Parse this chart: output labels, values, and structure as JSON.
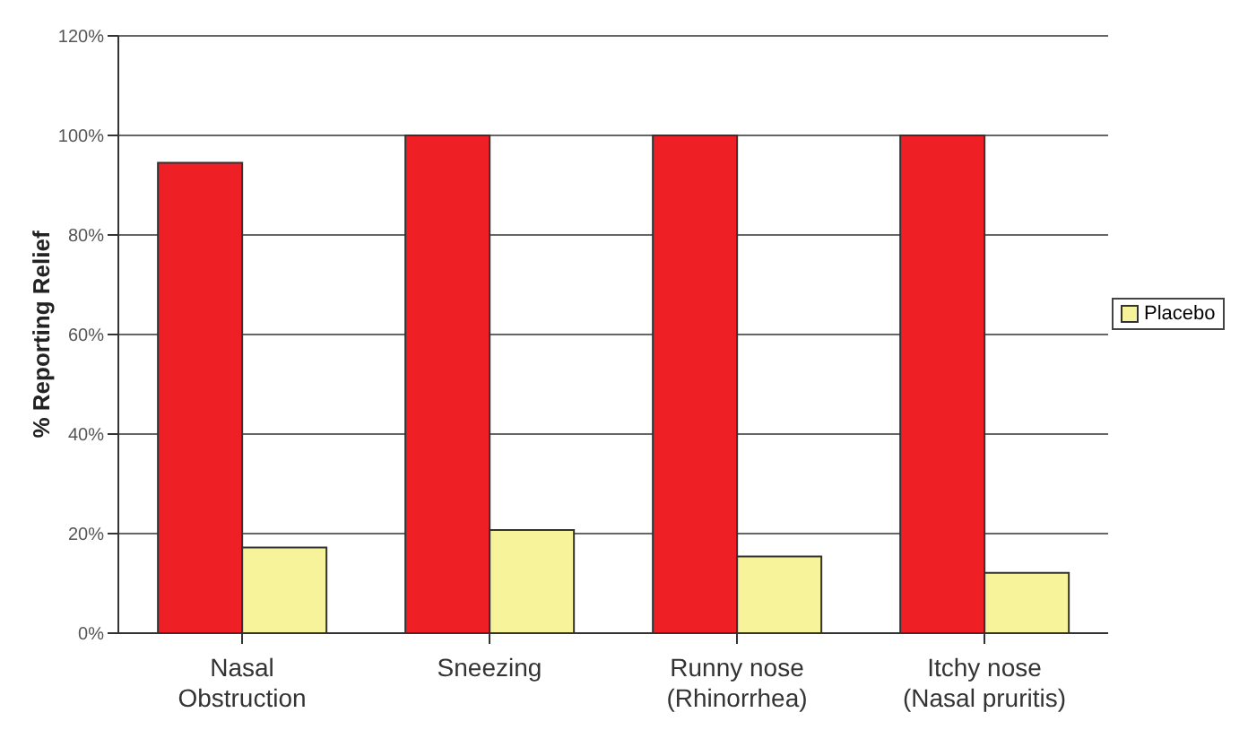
{
  "chart_data": {
    "type": "bar",
    "ylabel": "% Reporting Relief",
    "categories": [
      "Nasal\nObstruction",
      "Sneezing",
      "Runny nose\n(Rhinorrhea)",
      "Itchy nose\n(Nasal pruritis)"
    ],
    "series": [
      {
        "color": "#ee1f25",
        "values": [
          94.5,
          100,
          100,
          100
        ]
      },
      {
        "name": "Placebo",
        "color": "#f7f39b",
        "values": [
          17.2,
          20.7,
          15.4,
          12.1
        ]
      }
    ],
    "ylim": [
      0,
      120
    ],
    "yticks": [
      {
        "value": 0,
        "label": "0%"
      },
      {
        "value": 20,
        "label": "20%"
      },
      {
        "value": 40,
        "label": "40%"
      },
      {
        "value": 60,
        "label": "60%"
      },
      {
        "value": 80,
        "label": "80%"
      },
      {
        "value": 100,
        "label": "100%"
      },
      {
        "value": 120,
        "label": "120%"
      }
    ],
    "grid": "y",
    "legend": "right"
  }
}
